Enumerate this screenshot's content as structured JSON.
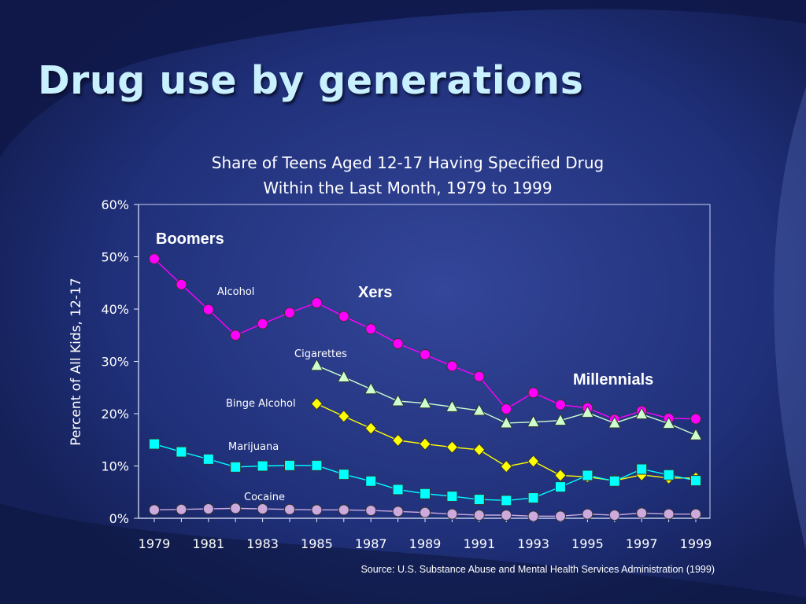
{
  "slide": {
    "title": "Drug use by generations",
    "source": "Source: U.S. Substance Abuse and Mental Health Services Administration (1999)"
  },
  "chart_data": {
    "type": "line",
    "title_lines": [
      "Share of Teens Aged 12-17 Having Specified Drug",
      "Within the Last Month, 1979 to 1999"
    ],
    "ylabel": "Percent of All Kids, 12-17",
    "xlabel": "",
    "ylim": [
      0,
      60
    ],
    "yticks": [
      "0%",
      "10%",
      "20%",
      "30%",
      "40%",
      "50%",
      "60%"
    ],
    "xticks": [
      "1979",
      "1981",
      "1983",
      "1985",
      "1987",
      "1989",
      "1991",
      "1993",
      "1995",
      "1997",
      "1999"
    ],
    "xlim": [
      1979,
      1999
    ],
    "grid": false,
    "legend": "none",
    "annotations": [
      {
        "text": "Boomers",
        "style": "bold-large"
      },
      {
        "text": "Xers",
        "style": "bold-large"
      },
      {
        "text": "Millennials",
        "style": "bold-large"
      }
    ],
    "series": [
      {
        "name": "Alcohol",
        "color": "#ff00ff",
        "marker": "circle",
        "x": [
          1979,
          1980,
          1981,
          1982,
          1983,
          1984,
          1985,
          1986,
          1987,
          1988,
          1989,
          1990,
          1991,
          1992,
          1993,
          1994,
          1995,
          1996,
          1997,
          1998,
          1999
        ],
        "y": [
          49.6,
          44.7,
          39.9,
          35.0,
          37.2,
          39.3,
          41.2,
          38.6,
          36.2,
          33.4,
          31.3,
          29.1,
          27.1,
          20.9,
          24.0,
          21.7,
          21.1,
          18.9,
          20.5,
          19.1,
          19.0
        ]
      },
      {
        "name": "Cigarettes",
        "color": "#ccffcc",
        "marker": "triangle",
        "x": [
          1985,
          1986,
          1987,
          1988,
          1989,
          1990,
          1991,
          1992,
          1993,
          1994,
          1995,
          1996,
          1997,
          1998,
          1999
        ],
        "y": [
          29.2,
          27.0,
          24.7,
          22.4,
          22.0,
          21.3,
          20.6,
          18.2,
          18.4,
          18.7,
          20.2,
          18.2,
          19.9,
          18.1,
          15.9
        ]
      },
      {
        "name": "Binge Alcohol",
        "color": "#ffff00",
        "marker": "diamond",
        "x": [
          1985,
          1986,
          1987,
          1988,
          1989,
          1990,
          1991,
          1992,
          1993,
          1994,
          1995,
          1996,
          1997,
          1998,
          1999
        ],
        "y": [
          21.9,
          19.5,
          17.2,
          14.9,
          14.2,
          13.6,
          13.1,
          9.9,
          10.9,
          8.2,
          7.9,
          7.2,
          8.3,
          7.7,
          7.7
        ]
      },
      {
        "name": "Marijuana",
        "color": "#00ffff",
        "marker": "square",
        "x": [
          1979,
          1980,
          1981,
          1982,
          1983,
          1984,
          1985,
          1986,
          1987,
          1988,
          1989,
          1990,
          1991,
          1992,
          1993,
          1994,
          1995,
          1996,
          1997,
          1998,
          1999
        ],
        "y": [
          14.2,
          12.7,
          11.3,
          9.8,
          10.0,
          10.1,
          10.1,
          8.4,
          7.1,
          5.5,
          4.7,
          4.2,
          3.6,
          3.4,
          3.9,
          6.0,
          8.2,
          7.1,
          9.4,
          8.3,
          7.2
        ]
      },
      {
        "name": "Cocaine",
        "color": "#ccaadd",
        "marker": "circle",
        "x": [
          1979,
          1980,
          1981,
          1982,
          1983,
          1984,
          1985,
          1986,
          1987,
          1988,
          1989,
          1990,
          1991,
          1992,
          1993,
          1994,
          1995,
          1996,
          1997,
          1998,
          1999
        ],
        "y": [
          1.6,
          1.7,
          1.8,
          1.9,
          1.8,
          1.7,
          1.6,
          1.6,
          1.5,
          1.3,
          1.1,
          0.8,
          0.6,
          0.6,
          0.4,
          0.4,
          0.8,
          0.6,
          1.0,
          0.8,
          0.8
        ]
      }
    ]
  }
}
